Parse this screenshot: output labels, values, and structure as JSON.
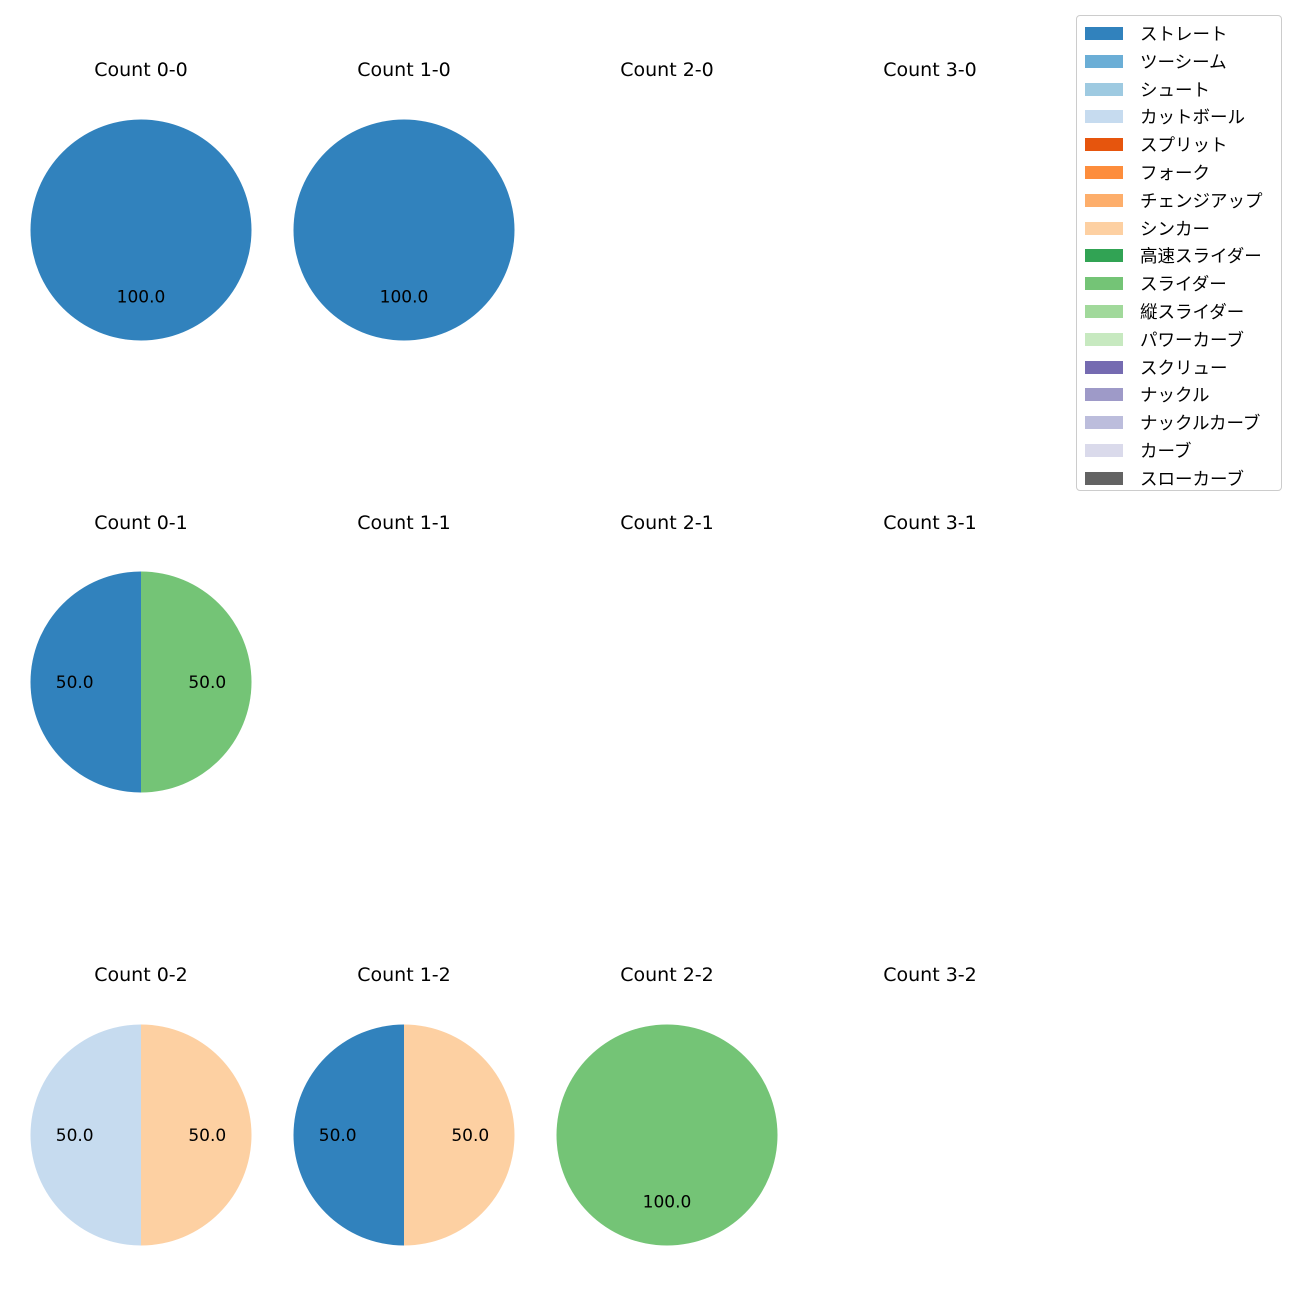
{
  "chart_data": {
    "type": "pie",
    "legend_placement": "top-right",
    "categories": [
      {
        "name": "ストレート",
        "color": "#3182bd"
      },
      {
        "name": "ツーシーム",
        "color": "#6baed6"
      },
      {
        "name": "シュート",
        "color": "#9ecae1"
      },
      {
        "name": "カットボール",
        "color": "#c6dbef"
      },
      {
        "name": "スプリット",
        "color": "#e6550d"
      },
      {
        "name": "フォーク",
        "color": "#fd8d3c"
      },
      {
        "name": "チェンジアップ",
        "color": "#fdae6b"
      },
      {
        "name": "シンカー",
        "color": "#fdd0a2"
      },
      {
        "name": "高速スライダー",
        "color": "#31a354"
      },
      {
        "name": "スライダー",
        "color": "#74c476"
      },
      {
        "name": "縦スライダー",
        "color": "#a1d99b"
      },
      {
        "name": "パワーカーブ",
        "color": "#c7e9c0"
      },
      {
        "name": "スクリュー",
        "color": "#756bb1"
      },
      {
        "name": "ナックル",
        "color": "#9e9ac8"
      },
      {
        "name": "ナックルカーブ",
        "color": "#bcbddc"
      },
      {
        "name": "カーブ",
        "color": "#dadaeb"
      },
      {
        "name": "スローカーブ",
        "color": "#636363"
      }
    ],
    "subplots": [
      {
        "title": "Count 0-0",
        "slices": [
          {
            "category": "ストレート",
            "value": 100.0,
            "label": "100.0"
          }
        ]
      },
      {
        "title": "Count 1-0",
        "slices": [
          {
            "category": "ストレート",
            "value": 100.0,
            "label": "100.0"
          }
        ]
      },
      {
        "title": "Count 2-0",
        "slices": []
      },
      {
        "title": "Count 3-0",
        "slices": []
      },
      {
        "title": "Count 0-1",
        "slices": [
          {
            "category": "ストレート",
            "value": 50.0,
            "label": "50.0"
          },
          {
            "category": "スライダー",
            "value": 50.0,
            "label": "50.0"
          }
        ]
      },
      {
        "title": "Count 1-1",
        "slices": []
      },
      {
        "title": "Count 2-1",
        "slices": []
      },
      {
        "title": "Count 3-1",
        "slices": []
      },
      {
        "title": "Count 0-2",
        "slices": [
          {
            "category": "カットボール",
            "value": 50.0,
            "label": "50.0"
          },
          {
            "category": "シンカー",
            "value": 50.0,
            "label": "50.0"
          }
        ]
      },
      {
        "title": "Count 1-2",
        "slices": [
          {
            "category": "ストレート",
            "value": 50.0,
            "label": "50.0"
          },
          {
            "category": "シンカー",
            "value": 50.0,
            "label": "50.0"
          }
        ]
      },
      {
        "title": "Count 2-2",
        "slices": [
          {
            "category": "スライダー",
            "value": 100.0,
            "label": "100.0"
          }
        ]
      },
      {
        "title": "Count 3-2",
        "slices": []
      }
    ]
  }
}
